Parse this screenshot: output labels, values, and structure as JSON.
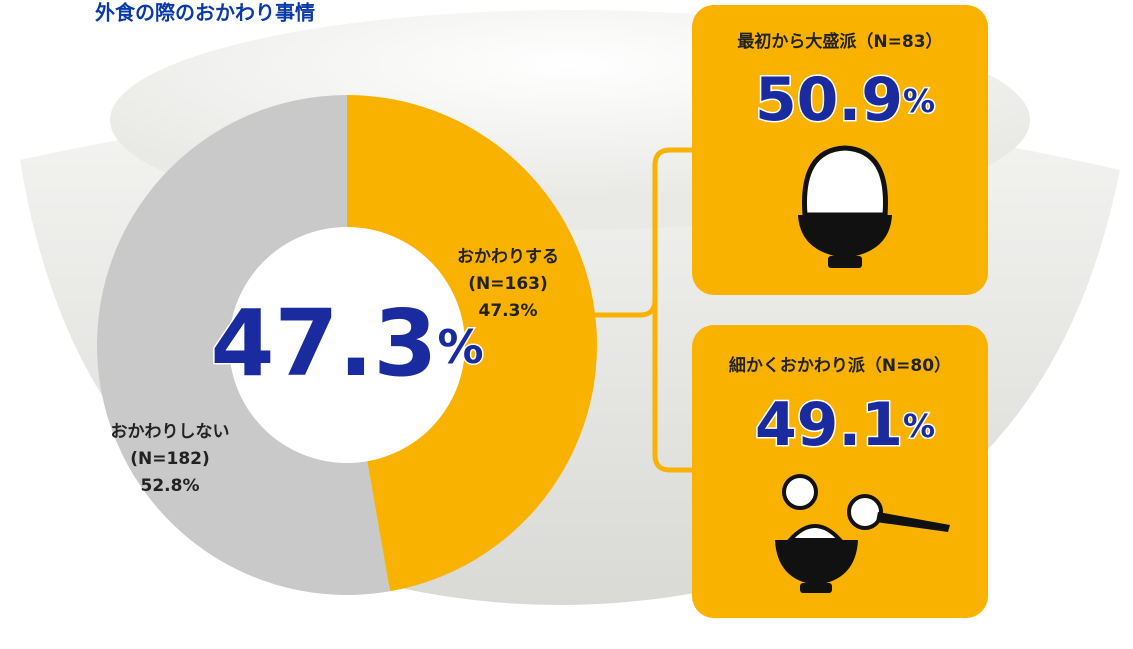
{
  "chart_data": {
    "type": "donut",
    "title": "外食の際のおかわり事情",
    "categories": [
      "おかわりする",
      "おかわりしない"
    ],
    "n_labels": [
      "(N=163)",
      "(N=182)"
    ],
    "values": [
      47.3,
      52.8
    ],
    "value_labels": [
      "47.3%",
      "52.8%"
    ],
    "colors": [
      "#f9b200",
      "#c9c9c9"
    ],
    "center": {
      "value": 47.3,
      "unit": "%"
    }
  },
  "panels": [
    {
      "label": "最初から大盛派（N=83）",
      "value": 50.9,
      "unit": "%"
    },
    {
      "label": "細かくおかわり派（N=80）",
      "value": 49.1,
      "unit": "%"
    }
  ]
}
